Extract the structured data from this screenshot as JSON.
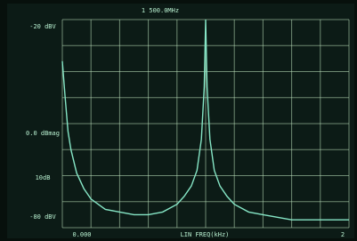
{
  "chart_data": {
    "type": "line",
    "title": "1 500.0MHz",
    "x_label": "LIN FREQ(kHz)",
    "annotations": [
      {
        "text": "-20 dBV",
        "side": "top"
      },
      {
        "text": "0.0 dBmag",
        "side": "middle"
      },
      {
        "text": "10dB",
        "side": "lower"
      },
      {
        "text": "-80 dBV",
        "side": "bottom"
      },
      {
        "text": "0.000",
        "side": "x-start"
      },
      {
        "text": "2",
        "side": "x-end"
      }
    ],
    "x": [
      0,
      0.02,
      0.04,
      0.06,
      0.1,
      0.15,
      0.2,
      0.3,
      0.4,
      0.5,
      0.6,
      0.7,
      0.8,
      0.85,
      0.9,
      0.94,
      0.97,
      0.99,
      1.0,
      1.01,
      1.03,
      1.06,
      1.1,
      1.15,
      1.2,
      1.3,
      1.4,
      1.5,
      1.6,
      1.8,
      2.0
    ],
    "series": [
      {
        "color": "#86e6c6",
        "values": [
          -36,
          -50,
          -63,
          -70,
          -79,
          -85,
          -89,
          -93,
          -94,
          -95,
          -95,
          -94,
          -91,
          -88,
          -84,
          -78,
          -66,
          -46,
          -20,
          -46,
          -66,
          -78,
          -84,
          -88,
          -91,
          -94,
          -95,
          -96,
          -97,
          -97,
          -97
        ]
      }
    ],
    "xlim": [
      0,
      2
    ],
    "ylim": [
      -100,
      -20
    ],
    "grid": true,
    "background": "#0c1b16",
    "grid_color": "#bfe3bf"
  }
}
